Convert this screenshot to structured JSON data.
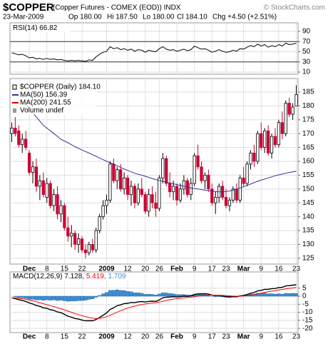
{
  "header": {
    "symbol": "$COPPER",
    "description": "(Copper Futures - COMEX (EOD)) INDX",
    "credit": "© StockCharts.com",
    "date": "23-Mar-2009",
    "quote": [
      "Op 180.00",
      "Hi 187.50",
      "Lo 180.00",
      "Cl 184.10",
      "Chg +4.50 (+2.51%)"
    ]
  },
  "chart_data": [
    {
      "type": "line",
      "title": "RSI(14) 66.82",
      "color": "#000000",
      "values": [
        48,
        46,
        44,
        45,
        42,
        38,
        39,
        36,
        37,
        35,
        37,
        35,
        36,
        34,
        35,
        33,
        32,
        33,
        32,
        33,
        32,
        31,
        34,
        33,
        40,
        45,
        49,
        51,
        60,
        56,
        58,
        54,
        56,
        53,
        55,
        51,
        54,
        53,
        49,
        53,
        51,
        50,
        56,
        60,
        55,
        53,
        54,
        51,
        53,
        55,
        52,
        54,
        61,
        58,
        55,
        56,
        53,
        49,
        51,
        54,
        51,
        49,
        50,
        53,
        51,
        56,
        55,
        59,
        62,
        60,
        65,
        61,
        64,
        59,
        62,
        60,
        64,
        61,
        67,
        64,
        65,
        66.82
      ],
      "ylim": [
        5.8,
        106.8
      ],
      "yticks": [
        90,
        70,
        50,
        30,
        10
      ],
      "reference_lines": [
        70,
        30
      ],
      "grid": true
    },
    {
      "type": "candlestick",
      "categories": [
        null,
        null,
        null,
        null,
        null,
        "Dec",
        null,
        null,
        null,
        null,
        "8",
        null,
        null,
        null,
        null,
        "15",
        null,
        null,
        null,
        null,
        "22",
        null,
        null,
        null,
        null,
        null,
        null,
        "2009",
        null,
        null,
        null,
        null,
        null,
        "12",
        null,
        null,
        null,
        null,
        "20",
        null,
        null,
        null,
        "26",
        null,
        null,
        null,
        null,
        "Feb",
        null,
        null,
        null,
        null,
        "9",
        null,
        null,
        null,
        null,
        "17",
        null,
        null,
        null,
        "23",
        null,
        null,
        null,
        null,
        "Mar",
        null,
        null,
        null,
        null,
        "9",
        null,
        null,
        null,
        null,
        "16",
        null,
        null,
        null,
        null,
        "23"
      ],
      "open": [
        170,
        172,
        171,
        166,
        168,
        163,
        156,
        158,
        151,
        153,
        147,
        152,
        144,
        148,
        141,
        144,
        136,
        133,
        134,
        130,
        132,
        128,
        127,
        130,
        128,
        135,
        140,
        144,
        146,
        159,
        153,
        157,
        150,
        154,
        148,
        151,
        145,
        150,
        148,
        142,
        148,
        145,
        143,
        154,
        161,
        152,
        149,
        151,
        146,
        150,
        153,
        148,
        152,
        162,
        158,
        153,
        155,
        150,
        145,
        147,
        151,
        147,
        144,
        146,
        150,
        146,
        154,
        152,
        159,
        163,
        160,
        170,
        165,
        171,
        163,
        169,
        166,
        174,
        170,
        181,
        177,
        180
      ],
      "high": [
        174,
        176,
        173,
        170,
        171,
        164,
        160,
        161,
        155,
        156,
        154,
        153,
        150,
        151,
        146,
        145,
        140,
        137,
        135,
        134,
        133,
        130,
        131,
        132,
        136,
        141,
        146,
        148,
        160,
        161,
        158,
        159,
        156,
        155,
        153,
        152,
        152,
        154,
        149,
        150,
        151,
        149,
        155,
        163,
        162,
        156,
        153,
        152,
        152,
        155,
        154,
        154,
        163,
        166,
        160,
        156,
        157,
        152,
        149,
        152,
        153,
        150,
        147,
        151,
        152,
        155,
        158,
        160,
        164,
        166,
        171,
        174,
        172,
        173,
        170,
        172,
        175,
        178,
        182,
        183,
        181,
        187.5
      ],
      "low": [
        167,
        169,
        165,
        163,
        164,
        155,
        152,
        149,
        146,
        147,
        145,
        143,
        142,
        139,
        138,
        135,
        131,
        129,
        128,
        127,
        127,
        125,
        126,
        127,
        127,
        134,
        139,
        141,
        145,
        152,
        150,
        149,
        148,
        146,
        144,
        143,
        144,
        147,
        141,
        140,
        143,
        140,
        142,
        152,
        151,
        147,
        146,
        144,
        145,
        148,
        147,
        146,
        151,
        157,
        152,
        150,
        149,
        144,
        141,
        145,
        146,
        143,
        142,
        145,
        145,
        145,
        151,
        151,
        157,
        158,
        159,
        164,
        163,
        162,
        161,
        165,
        165,
        168,
        169,
        176,
        175,
        180
      ],
      "close": [
        172,
        170,
        166,
        168,
        165,
        156,
        158,
        151,
        153,
        148,
        152,
        144,
        148,
        141,
        144,
        136,
        133,
        134,
        130,
        132,
        128,
        127,
        130,
        128,
        135,
        140,
        144,
        146,
        159,
        153,
        157,
        150,
        154,
        148,
        151,
        145,
        150,
        148,
        142,
        148,
        145,
        143,
        154,
        161,
        152,
        149,
        151,
        146,
        150,
        153,
        148,
        152,
        162,
        158,
        153,
        155,
        150,
        145,
        147,
        151,
        147,
        144,
        146,
        150,
        146,
        154,
        152,
        159,
        163,
        160,
        170,
        165,
        171,
        163,
        169,
        166,
        174,
        170,
        181,
        177,
        179.6,
        184.1
      ],
      "up_color": "#000000",
      "down_color": "#cc0033",
      "ma50": {
        "color": "#333399",
        "values": [
          null,
          null,
          null,
          null,
          181,
          179,
          177.5,
          176,
          174.5,
          173,
          172,
          171,
          170,
          169,
          168,
          167.3,
          166.7,
          166,
          165.3,
          164.7,
          164.1,
          163.5,
          163,
          162.4,
          161.8,
          161.2,
          160.6,
          160,
          159.5,
          159,
          158.4,
          157.8,
          157.2,
          156.7,
          156.2,
          155.7,
          155.3,
          155,
          154.6,
          154.2,
          153.8,
          153.4,
          153.1,
          152.8,
          152.5,
          152.2,
          151.9,
          151.6,
          151.3,
          151,
          150.7,
          150.4,
          150.2,
          150,
          149.8,
          149.6,
          149.4,
          149.2,
          149.1,
          149,
          149,
          149.1,
          149.3,
          149.6,
          150,
          150.4,
          150.8,
          151.3,
          151.8,
          152.3,
          152.8,
          153.2,
          153.6,
          154,
          154.4,
          154.8,
          155.1,
          155.4,
          155.7,
          156,
          156.2,
          156.39
        ]
      },
      "legend": [
        {
          "label": "$COPPER (Daily) 184.10",
          "color": "#000000"
        },
        {
          "label": "MA(50) 156.39",
          "color": "#333399"
        },
        {
          "label": "MA(200) 241.55",
          "color": "#dd0000"
        },
        {
          "label": "Volume undef",
          "color": "#999999"
        }
      ],
      "ylim": [
        122.9,
        189.9
      ],
      "yticks": [
        185,
        180,
        175,
        170,
        165,
        160,
        155,
        150,
        145,
        140,
        135,
        130,
        125
      ],
      "grid": true
    },
    {
      "type": "macd",
      "title": "MACD(12,26,9)",
      "series": [
        {
          "color": "#000000",
          "label": "7.128,",
          "values": [
            -1,
            -1.5,
            -2.2,
            -2.6,
            -3.2,
            -4.2,
            -4.8,
            -5.8,
            -6.3,
            -7.2,
            -7.5,
            -8.4,
            -8.8,
            -9.8,
            -10.2,
            -11.3,
            -12.4,
            -13,
            -13.8,
            -14.2,
            -14.8,
            -15.3,
            -15.2,
            -15.3,
            -14.5,
            -13.2,
            -11.8,
            -10.4,
            -8.2,
            -7.2,
            -5.9,
            -5.4,
            -4.6,
            -4.4,
            -3.9,
            -4,
            -3.5,
            -3.3,
            -3.6,
            -3.2,
            -3.1,
            -3.2,
            -2.3,
            -1,
            -0.6,
            -0.5,
            -0.3,
            -0.5,
            -0.3,
            0,
            -0.1,
            0.1,
            1,
            1.5,
            1.5,
            1.6,
            1.3,
            0.7,
            0.4,
            0.4,
            0.1,
            -0.3,
            -0.5,
            -0.3,
            -0.4,
            0.2,
            0.5,
            1.1,
            1.9,
            2.3,
            3.3,
            3.6,
            4.3,
            4.3,
            4.7,
            4.8,
            5.4,
            5.5,
            6.4,
            6.6,
            6.9,
            7.128
          ]
        },
        {
          "color": "#ff0000",
          "label": "5.419,",
          "values": [
            -1,
            -1.1,
            -1.32,
            -1.58,
            -1.9,
            -2.36,
            -2.85,
            -3.44,
            -4.01,
            -4.65,
            -5.22,
            -5.86,
            -6.45,
            -7.12,
            -7.74,
            -8.45,
            -9.24,
            -9.99,
            -10.75,
            -11.44,
            -12.11,
            -12.75,
            -13.24,
            -13.65,
            -13.82,
            -13.7,
            -13.32,
            -12.74,
            -11.83,
            -10.9,
            -9.9,
            -9,
            -8.12,
            -7.38,
            -6.68,
            -6.14,
            -5.61,
            -5.15,
            -4.84,
            -4.51,
            -4.23,
            -4.02,
            -3.68,
            -3.14,
            -2.63,
            -2.2,
            -1.82,
            -1.56,
            -1.31,
            -1.05,
            -0.86,
            -0.67,
            -0.34,
            0.03,
            0.32,
            0.58,
            0.72,
            0.72,
            0.66,
            0.61,
            0.51,
            0.35,
            0.18,
            0.08,
            -0.02,
            0.02,
            0.12,
            0.32,
            0.64,
            0.97,
            1.44,
            1.87,
            2.36,
            2.75,
            3.14,
            3.47,
            3.86,
            4.19,
            4.6,
            4.9,
            5.1,
            5.419
          ]
        },
        {
          "color": "#3a8fd8",
          "label": "1.709",
          "histogram": true,
          "values": [
            0,
            -0.4,
            -0.88,
            -1.02,
            -1.3,
            -1.84,
            -1.95,
            -2.36,
            -2.29,
            -2.55,
            -2.28,
            -2.54,
            -2.35,
            -2.68,
            -2.46,
            -2.85,
            -3.16,
            -3.01,
            -3.05,
            -2.76,
            -2.69,
            -2.55,
            -1.96,
            -1.65,
            -0.68,
            0.5,
            1.52,
            2.34,
            3.63,
            3.7,
            4,
            3.6,
            3.52,
            2.98,
            2.78,
            2.14,
            2.11,
            1.85,
            1.24,
            1.31,
            1.13,
            0.82,
            1.38,
            2.14,
            2.03,
            1.7,
            1.52,
            1.06,
            1.01,
            1.05,
            0.76,
            0.77,
            1.34,
            1.47,
            1.18,
            1.02,
            0.58,
            -0.02,
            -0.26,
            -0.21,
            -0.41,
            -0.65,
            -0.68,
            -0.38,
            -0.38,
            0.18,
            0.38,
            0.78,
            1.26,
            1.33,
            1.86,
            1.73,
            1.94,
            1.55,
            1.56,
            1.33,
            1.54,
            1.31,
            1.8,
            1.7,
            1.8,
            1.709
          ]
        }
      ],
      "ylim": [
        -22.6,
        15.1
      ],
      "yticks": [
        5,
        0,
        -5,
        -10,
        -15,
        -20
      ],
      "grid": true
    }
  ]
}
